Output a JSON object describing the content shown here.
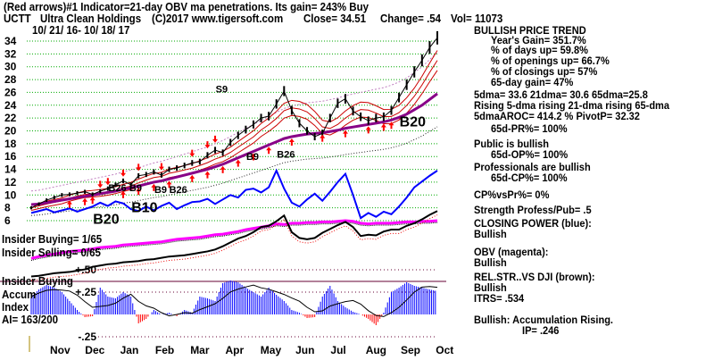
{
  "header": {
    "line1": "(Red arrows)#1 Indicator=21-day OBV ma penetrations. Its gain= 243% Buy",
    "ticker": "UCTT",
    "company": "Ultra Clean Holdings",
    "copyright": "(C)2017 www.tigersoft.com",
    "close": "Close=  34.51",
    "change": "Change= .54",
    "vol": "Vol= 11073",
    "daterange": "10/ 21/ 16- 10/ 18/ 17"
  },
  "panel": {
    "trend": "BULLISH PRICE TREND",
    "years_gain": "Year's Gain= 351.7%",
    "days_up": "% of days up= 59.8%",
    "openings_up": "% of openings up= 66.7%",
    "closings_up": "% of closings up= 57%",
    "gain65": "65-day gain= 47%",
    "dmas": "5dma= 33.6 21dma= 30.6 65dma=25.8",
    "rising": "Rising 5-dma rising 21-dma rising 65-dma",
    "aroc": "5dmaAROC= 414.2 %  PivotP= 32.32",
    "pr65": "65d-PR%= 100%",
    "public": "Public is bullish",
    "op65": "65d-OP%= 100%",
    "pros": "Professionals are bullish",
    "cp65": "65d-CP%= 100%",
    "cpvspr": "CP%vsPr%=  0%",
    "strength": "Strength Profess/Pub= .5",
    "cp_title": "CLOSING POWER (blue):",
    "cp_state": "Bullish",
    "obv_title": "OBV (magenta):",
    "obv_state": "Bullish",
    "rs_title": "REL.STR..VS DJI (brown):",
    "rs_state": "Bullish",
    "itrs": "ITRS= .534",
    "accum": "Bullish: Accumulation Rising.",
    "ip": "IP=  .246"
  },
  "lower": {
    "insider_buying": "Insider Buying= 1/65",
    "insider_selling": "Insider Selling= 0/65",
    "insider_buying2": "Insider Buying",
    "accum": "Accum",
    "index": "Index",
    "ai": "AI= 163/200"
  },
  "chart_data": {
    "type": "line",
    "title": "UCTT Ultra Clean Holdings",
    "price_ticks": [
      "34",
      "32",
      "30",
      "28",
      "26",
      "24",
      "22",
      "20",
      "18",
      "16",
      "14",
      "12",
      "10",
      "8",
      "6"
    ],
    "ylim": [
      6,
      34
    ],
    "accum_ticks": [
      "+.50",
      "+.25",
      "-.25"
    ],
    "accum_ylim": [
      -0.25,
      0.5
    ],
    "months": [
      "Nov",
      "Dec",
      "Jan",
      "Feb",
      "Mar",
      "Apr",
      "May",
      "Jun",
      "Jul",
      "Aug",
      "Sep",
      "Oct"
    ],
    "price": [
      8,
      8.6,
      9.2,
      9.6,
      10,
      10.1,
      10.3,
      10.5,
      10.1,
      10.6,
      11,
      11.6,
      12.2,
      11.6,
      13,
      13.2,
      13.6,
      13.1,
      14,
      14.2,
      14.6,
      15,
      15.2,
      16.2,
      17,
      16.6,
      18.2,
      19.3,
      20.2,
      21,
      22,
      22.3,
      24.2,
      26.2,
      23.2,
      21.2,
      20,
      19.1,
      19.6,
      22,
      24.3,
      25,
      23.1,
      22.2,
      21.6,
      22,
      22.2,
      23.2,
      25.2,
      27.2,
      29.2,
      31,
      33,
      34.51
    ],
    "ma65": [
      8.5,
      8.6,
      8.8,
      9,
      9.2,
      9.4,
      9.6,
      9.8,
      10,
      10.2,
      10.4,
      10.6,
      10.9,
      11.1,
      11.4,
      11.7,
      12,
      12.2,
      12.5,
      12.8,
      13.1,
      13.4,
      13.7,
      14,
      14.4,
      14.8,
      15.3,
      15.8,
      16.3,
      16.8,
      17.3,
      17.8,
      18.3,
      18.8,
      19.1,
      19.3,
      19.5,
      19.6,
      19.7,
      19.9,
      20.1,
      20.4,
      20.6,
      20.8,
      21,
      21.2,
      21.4,
      21.7,
      22.1,
      22.6,
      23.3,
      24,
      24.9,
      25.8
    ],
    "closing_power": [
      7.2,
      7.5,
      7.8,
      7.3,
      7.6,
      7.9,
      7.4,
      7.8,
      8.2,
      8.8,
      8.3,
      9,
      8.7,
      7.8,
      7.5,
      8.2,
      7.6,
      8.3,
      8.8,
      7.8,
      8.4,
      8.9,
      9,
      9.4,
      8.6,
      9.3,
      10,
      9.6,
      10.8,
      11,
      10.4,
      11.2,
      13.8,
      11,
      8.8,
      8.2,
      9.3,
      10.2,
      9.1,
      10.5,
      12,
      13.3,
      10,
      6.4,
      7.2,
      6.6,
      7.4,
      7,
      8.2,
      9.6,
      11.2,
      12.1,
      13,
      13.8
    ],
    "obv": [
      0.1,
      0.4,
      0.6,
      0.8,
      1,
      1.2,
      1.3,
      1.4,
      1.6,
      1.8,
      1.9,
      2,
      2.2,
      2.3,
      2.4,
      2.5,
      2.6,
      2.7,
      2.9,
      3.1,
      3.2,
      3.3,
      3.4,
      3.6,
      3.8,
      3.9,
      4.1,
      4.3,
      4.6,
      4.8,
      5,
      5.2,
      5.5,
      5.4,
      5.6,
      5.6,
      5.7,
      5.7,
      5.8,
      5.8,
      5.9,
      6,
      5.9,
      5.6,
      5.5,
      5.6,
      5.6,
      5.6,
      5.7,
      5.8,
      5.8,
      5.9,
      5.9,
      6
    ],
    "rel_strength": [
      -2.7,
      -2.6,
      -2.4,
      -2.2,
      -2.1,
      -2,
      -1.8,
      -1.6,
      -1.2,
      -1,
      -0.8,
      -0.7,
      -0.5,
      -0.4,
      -0.3,
      -0.1,
      0,
      0.2,
      0.4,
      0.5,
      0.6,
      0.8,
      1,
      1.2,
      1.5,
      2,
      2.6,
      3.2,
      3.6,
      4.2,
      5,
      5.2,
      5.9,
      6.8,
      4.2,
      3.3,
      3.1,
      3.3,
      4.1,
      4.7,
      5.3,
      5.8,
      5,
      3.6,
      3.8,
      3.7,
      4.3,
      4.6,
      4.6,
      5.2,
      5.6,
      6.2,
      6.9,
      7.5
    ],
    "accum_index": [
      0.2,
      0.28,
      0.33,
      0.3,
      0.25,
      0.15,
      0.05,
      -0.03,
      -0.02,
      0.3,
      0.2,
      0.18,
      0.25,
      0.2,
      -0.1,
      -0.05,
      0.05,
      0,
      0.02,
      -0.02,
      0.05,
      0.02,
      0.2,
      0.18,
      0.15,
      0.35,
      0.38,
      0.36,
      0.3,
      0.25,
      0.2,
      0.3,
      0.22,
      0.15,
      0.05,
      0.02,
      -0.04,
      -0.03,
      0.2,
      0.32,
      0.15,
      0.08,
      0.03,
      0.0,
      -0.05,
      -0.12,
      0.02,
      0.25,
      0.3,
      0.36,
      0.32,
      0.3,
      0.28,
      0.26
    ],
    "annotations": [
      {
        "label": "B20",
        "i": 9,
        "v": 5.5
      },
      {
        "label": "B10",
        "i": 14,
        "v": 7.3
      },
      {
        "label": "B26",
        "i": 11,
        "v": 10.6
      },
      {
        "label": "B9",
        "i": 13,
        "v": 10.6
      },
      {
        "label": "B9",
        "i": 17,
        "v": 10.3
      },
      {
        "label": "B26",
        "i": 18,
        "v": 10.3
      },
      {
        "label": "S9",
        "i": 25,
        "v": 26
      },
      {
        "label": "B9",
        "i": 29,
        "v": 15.5
      },
      {
        "label": "B26",
        "i": 33,
        "v": 15.8
      },
      {
        "label": "B20",
        "i": 49,
        "v": 20.7
      }
    ],
    "red_arrows_up": [
      5,
      7,
      8,
      12,
      14,
      16,
      18,
      21,
      23,
      25,
      27,
      29,
      31,
      34,
      38,
      41,
      44,
      46,
      47
    ],
    "red_arrows_down": [
      9,
      10,
      12,
      14,
      17,
      21,
      23,
      24
    ]
  }
}
